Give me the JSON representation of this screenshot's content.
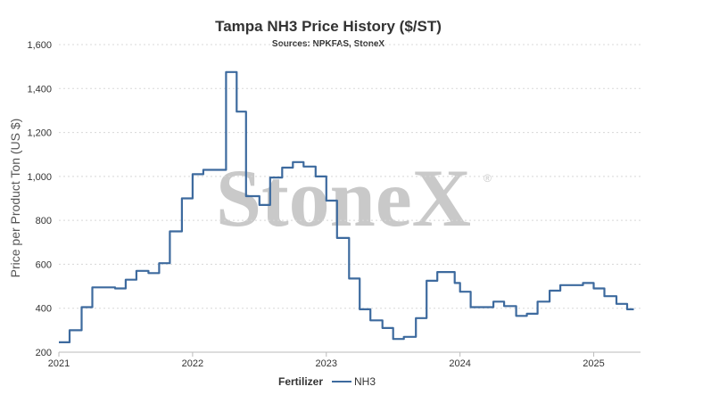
{
  "chart_data": {
    "type": "line",
    "title": "Tampa NH3 Price History ($/ST)",
    "subtitle": "Sources: NPKFAS, StoneX",
    "ylabel": "Price per Product Ton (US $)",
    "xlabel": "",
    "ylim": [
      200,
      1600
    ],
    "yticks": [
      200,
      400,
      600,
      800,
      1000,
      1200,
      1400,
      1600
    ],
    "ytick_labels": [
      "200",
      "400",
      "600",
      "800",
      "1,000",
      "1,200",
      "1,400",
      "1,600"
    ],
    "xlim": [
      2021.0,
      2025.35
    ],
    "xticks": [
      2021,
      2022,
      2023,
      2024,
      2025
    ],
    "xtick_labels": [
      "2021",
      "2022",
      "2023",
      "2024",
      "2025"
    ],
    "grid": true,
    "legend": {
      "title": "Fertilizer",
      "placement": "bottom-center"
    },
    "watermark": "StoneX",
    "watermark_mark": "®",
    "series": [
      {
        "name": "NH3",
        "color": "#3d6a9e",
        "step": true,
        "x": [
          2021.0,
          2021.08,
          2021.17,
          2021.25,
          2021.33,
          2021.42,
          2021.5,
          2021.58,
          2021.67,
          2021.75,
          2021.83,
          2021.92,
          2022.0,
          2022.08,
          2022.25,
          2022.33,
          2022.4,
          2022.5,
          2022.58,
          2022.67,
          2022.75,
          2022.83,
          2022.92,
          2023.0,
          2023.08,
          2023.17,
          2023.25,
          2023.33,
          2023.42,
          2023.5,
          2023.58,
          2023.67,
          2023.75,
          2023.83,
          2023.92,
          2023.96,
          2024.0,
          2024.08,
          2024.17,
          2024.25,
          2024.33,
          2024.42,
          2024.5,
          2024.58,
          2024.67,
          2024.75,
          2024.83,
          2024.92,
          2025.0,
          2025.08,
          2025.17,
          2025.25,
          2025.3
        ],
        "values": [
          245,
          300,
          405,
          495,
          495,
          490,
          530,
          570,
          560,
          605,
          750,
          900,
          1010,
          1030,
          1475,
          1295,
          910,
          870,
          995,
          1040,
          1065,
          1045,
          1000,
          890,
          720,
          535,
          395,
          345,
          310,
          260,
          270,
          355,
          525,
          565,
          565,
          515,
          475,
          405,
          405,
          430,
          410,
          365,
          375,
          430,
          480,
          505,
          505,
          515,
          490,
          455,
          420,
          395,
          395
        ]
      }
    ]
  }
}
